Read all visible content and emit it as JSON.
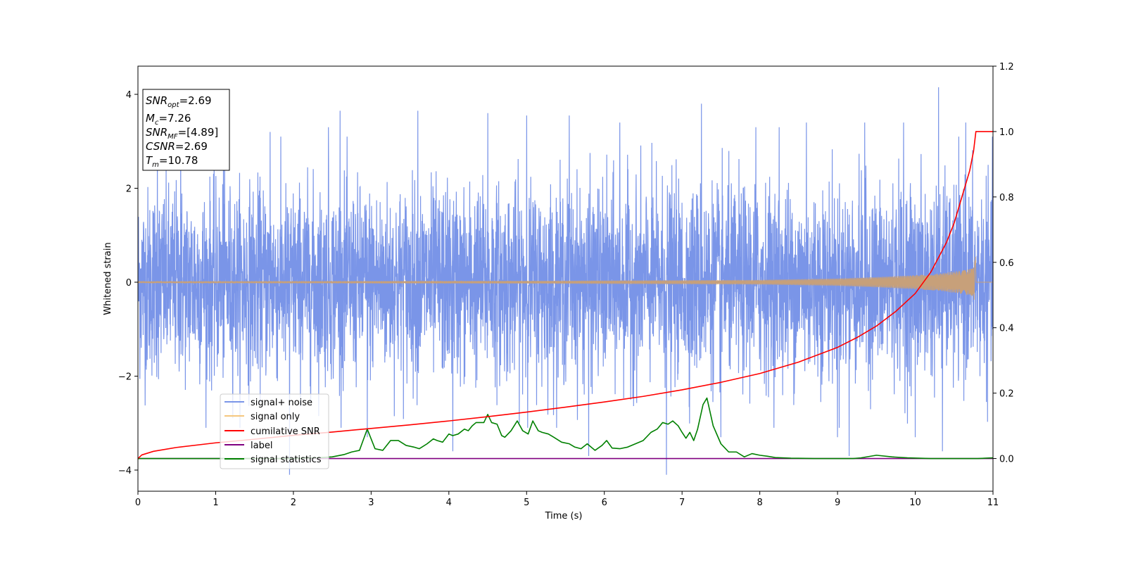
{
  "chart_data": {
    "type": "line",
    "xlabel": "Time (s)",
    "ylabel": "Whitened strain",
    "xlim": [
      0,
      11
    ],
    "ylim": [
      -4.45,
      4.6
    ],
    "y2lim": [
      -0.1,
      1.2
    ],
    "xticks": [
      "0",
      "1",
      "2",
      "3",
      "4",
      "5",
      "6",
      "7",
      "8",
      "9",
      "10",
      "11"
    ],
    "yticks": [
      "−4",
      "−2",
      "0",
      "2",
      "4"
    ],
    "y2ticks": [
      "0.0",
      "0.2",
      "0.4",
      "0.6",
      "0.8",
      "1.0",
      "1.2"
    ],
    "grid": false,
    "legend_position": "lower-left",
    "legend": [
      "signal+ noise",
      "signal only",
      "cumilative SNR",
      "label",
      "signal statistics"
    ],
    "colors": {
      "signal_noise": "#7a95e8",
      "signal_only": "#f5c77e",
      "signal_only_fill": "#c7a07a",
      "cumulative_snr": "#ff0000",
      "label": "#800080",
      "signal_statistics": "#008000"
    },
    "annotation": {
      "snr_opt": "=2.69",
      "mc": "=7.26",
      "snr_mf": "=[4.89]",
      "csnr": "=2.69",
      "tm": "=10.78"
    },
    "series": [
      {
        "name": "signal+ noise",
        "axis": "left",
        "note": "whitened noise, std about 1, sampled densely from 0 to 11 s",
        "std": 1.0,
        "peaks": [
          [
            0.25,
            3.0
          ],
          [
            0.55,
            3.1
          ],
          [
            1.1,
            3.0
          ],
          [
            1.7,
            3.2
          ],
          [
            1.95,
            -4.1
          ],
          [
            2.45,
            3.3
          ],
          [
            2.6,
            3.65
          ],
          [
            2.95,
            -3.3
          ],
          [
            3.6,
            3.65
          ],
          [
            4.05,
            -3.6
          ],
          [
            4.5,
            3.6
          ],
          [
            5.0,
            3.55
          ],
          [
            5.55,
            3.55
          ],
          [
            5.8,
            -3.7
          ],
          [
            6.2,
            3.4
          ],
          [
            6.8,
            -4.1
          ],
          [
            7.25,
            3.8
          ],
          [
            7.5,
            -3.3
          ],
          [
            7.95,
            3.3
          ],
          [
            8.25,
            3.3
          ],
          [
            8.6,
            3.4
          ],
          [
            9.0,
            -3.3
          ],
          [
            9.15,
            -3.7
          ],
          [
            9.35,
            3.4
          ],
          [
            9.85,
            3.4
          ],
          [
            10.0,
            -3.3
          ],
          [
            10.3,
            4.15
          ],
          [
            10.35,
            -3.6
          ],
          [
            10.65,
            3.4
          ]
        ]
      },
      {
        "name": "signal only",
        "axis": "left",
        "t_merger": 10.78,
        "amplitude_envelope": [
          [
            0,
            0.02
          ],
          [
            5,
            0.03
          ],
          [
            8,
            0.05
          ],
          [
            9,
            0.08
          ],
          [
            9.5,
            0.11
          ],
          [
            10,
            0.15
          ],
          [
            10.3,
            0.18
          ],
          [
            10.6,
            0.25
          ],
          [
            10.75,
            0.3
          ],
          [
            10.78,
            0.6
          ],
          [
            10.79,
            0.0
          ],
          [
            11,
            0.0
          ]
        ]
      },
      {
        "name": "cumilative SNR",
        "axis": "right",
        "x": [
          0,
          0.05,
          0.2,
          0.5,
          1,
          1.5,
          2,
          2.5,
          3,
          3.5,
          4,
          4.5,
          5,
          5.5,
          6,
          6.5,
          7,
          7.5,
          8,
          8.5,
          9,
          9.25,
          9.5,
          9.75,
          10,
          10.2,
          10.4,
          10.5,
          10.6,
          10.7,
          10.75,
          10.78,
          10.9,
          11
        ],
        "y": [
          0.0,
          0.011,
          0.022,
          0.034,
          0.048,
          0.059,
          0.071,
          0.081,
          0.092,
          0.103,
          0.115,
          0.128,
          0.142,
          0.157,
          0.173,
          0.19,
          0.21,
          0.233,
          0.26,
          0.295,
          0.34,
          0.37,
          0.405,
          0.45,
          0.505,
          0.57,
          0.66,
          0.72,
          0.8,
          0.88,
          0.94,
          1.0,
          1.0,
          1.0
        ]
      },
      {
        "name": "label",
        "axis": "right",
        "x": [
          0,
          11
        ],
        "y": [
          0.0,
          0.0
        ]
      },
      {
        "name": "signal statistics",
        "axis": "right",
        "x": [
          0,
          0.5,
          1,
          1.5,
          2,
          2.3,
          2.5,
          2.65,
          2.75,
          2.85,
          2.95,
          3.05,
          3.15,
          3.25,
          3.35,
          3.45,
          3.55,
          3.62,
          3.72,
          3.8,
          3.85,
          3.92,
          4.0,
          4.05,
          4.12,
          4.2,
          4.25,
          4.3,
          4.35,
          4.45,
          4.5,
          4.55,
          4.62,
          4.68,
          4.72,
          4.8,
          4.88,
          4.95,
          5.02,
          5.08,
          5.15,
          5.2,
          5.28,
          5.35,
          5.45,
          5.55,
          5.62,
          5.7,
          5.78,
          5.88,
          5.97,
          6.03,
          6.1,
          6.2,
          6.3,
          6.4,
          6.5,
          6.6,
          6.68,
          6.75,
          6.82,
          6.88,
          6.95,
          7.0,
          7.05,
          7.1,
          7.15,
          7.2,
          7.27,
          7.32,
          7.4,
          7.5,
          7.6,
          7.7,
          7.8,
          7.9,
          8.0,
          8.1,
          8.2,
          8.4,
          8.7,
          9.0,
          9.2,
          9.3,
          9.5,
          9.7,
          9.9,
          10.2,
          10.5,
          10.8,
          11
        ],
        "y": [
          0.0,
          0.0,
          0.0,
          0.0,
          0.0,
          0.002,
          0.005,
          0.012,
          0.02,
          0.025,
          0.09,
          0.03,
          0.025,
          0.055,
          0.055,
          0.04,
          0.035,
          0.03,
          0.045,
          0.06,
          0.055,
          0.05,
          0.075,
          0.07,
          0.075,
          0.09,
          0.085,
          0.1,
          0.11,
          0.11,
          0.135,
          0.11,
          0.105,
          0.07,
          0.065,
          0.085,
          0.115,
          0.085,
          0.075,
          0.115,
          0.085,
          0.08,
          0.075,
          0.065,
          0.05,
          0.045,
          0.035,
          0.03,
          0.045,
          0.025,
          0.04,
          0.055,
          0.032,
          0.03,
          0.035,
          0.045,
          0.055,
          0.08,
          0.09,
          0.11,
          0.105,
          0.115,
          0.1,
          0.08,
          0.062,
          0.08,
          0.055,
          0.09,
          0.165,
          0.185,
          0.1,
          0.045,
          0.02,
          0.02,
          0.005,
          0.015,
          0.01,
          0.007,
          0.003,
          0.001,
          0.0,
          0.0,
          0.0,
          0.002,
          0.01,
          0.005,
          0.002,
          0.0,
          0.0,
          0.0,
          0.002
        ]
      }
    ]
  }
}
